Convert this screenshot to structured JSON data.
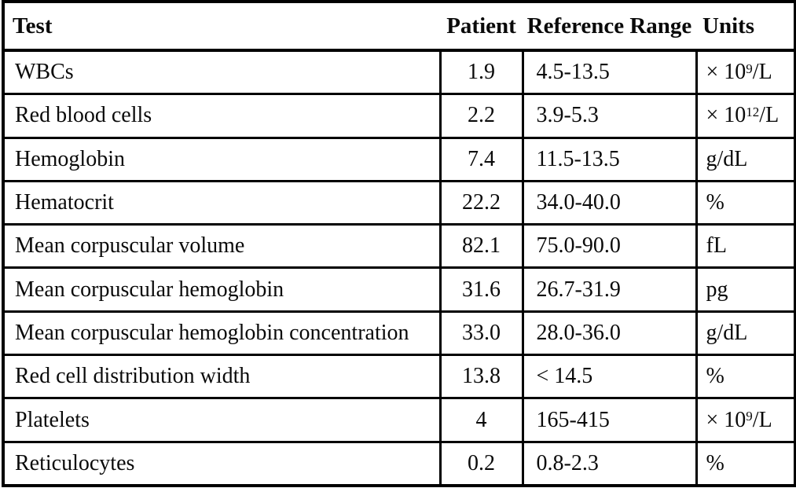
{
  "page": {
    "background_color": "#ffffff",
    "border_color": "#000000",
    "text_color": "#0a0a0a"
  },
  "table": {
    "columns": [
      {
        "key": "test",
        "label": "Test"
      },
      {
        "key": "patient",
        "label": "Patient"
      },
      {
        "key": "range",
        "label": "Reference Range"
      },
      {
        "key": "units",
        "label": "Units"
      }
    ],
    "rows": [
      {
        "test": "WBCs",
        "patient": "1.9",
        "range": "4.5-13.5",
        "unit": {
          "text": "× 10",
          "sup": "9",
          "tail": "/L"
        }
      },
      {
        "test": "Red blood cells",
        "patient": "2.2",
        "range": "3.9-5.3",
        "unit": {
          "text": "× 10",
          "sup": "12",
          "tail": "/L"
        }
      },
      {
        "test": "Hemoglobin",
        "patient": "7.4",
        "range": "11.5-13.5",
        "unit": {
          "text": "g/dL",
          "sup": "",
          "tail": ""
        }
      },
      {
        "test": "Hematocrit",
        "patient": "22.2",
        "range": "34.0-40.0",
        "unit": {
          "text": "%",
          "sup": "",
          "tail": ""
        }
      },
      {
        "test": "Mean corpuscular volume",
        "patient": "82.1",
        "range": "75.0-90.0",
        "unit": {
          "text": "fL",
          "sup": "",
          "tail": ""
        }
      },
      {
        "test": "Mean corpuscular hemoglobin",
        "patient": "31.6",
        "range": "26.7-31.9",
        "unit": {
          "text": "pg",
          "sup": "",
          "tail": ""
        }
      },
      {
        "test": "Mean corpuscular hemoglobin concentration",
        "patient": "33.0",
        "range": "28.0-36.0",
        "unit": {
          "text": "g/dL",
          "sup": "",
          "tail": ""
        }
      },
      {
        "test": "Red cell distribution width",
        "patient": "13.8",
        "range": "< 14.5",
        "unit": {
          "text": "%",
          "sup": "",
          "tail": ""
        }
      },
      {
        "test": "Platelets",
        "patient": "4",
        "range": "165-415",
        "unit": {
          "text": "× 10",
          "sup": "9",
          "tail": "/L"
        }
      },
      {
        "test": "Reticulocytes",
        "patient": "0.2",
        "range": "0.8-2.3",
        "unit": {
          "text": "%",
          "sup": "",
          "tail": ""
        }
      }
    ]
  }
}
